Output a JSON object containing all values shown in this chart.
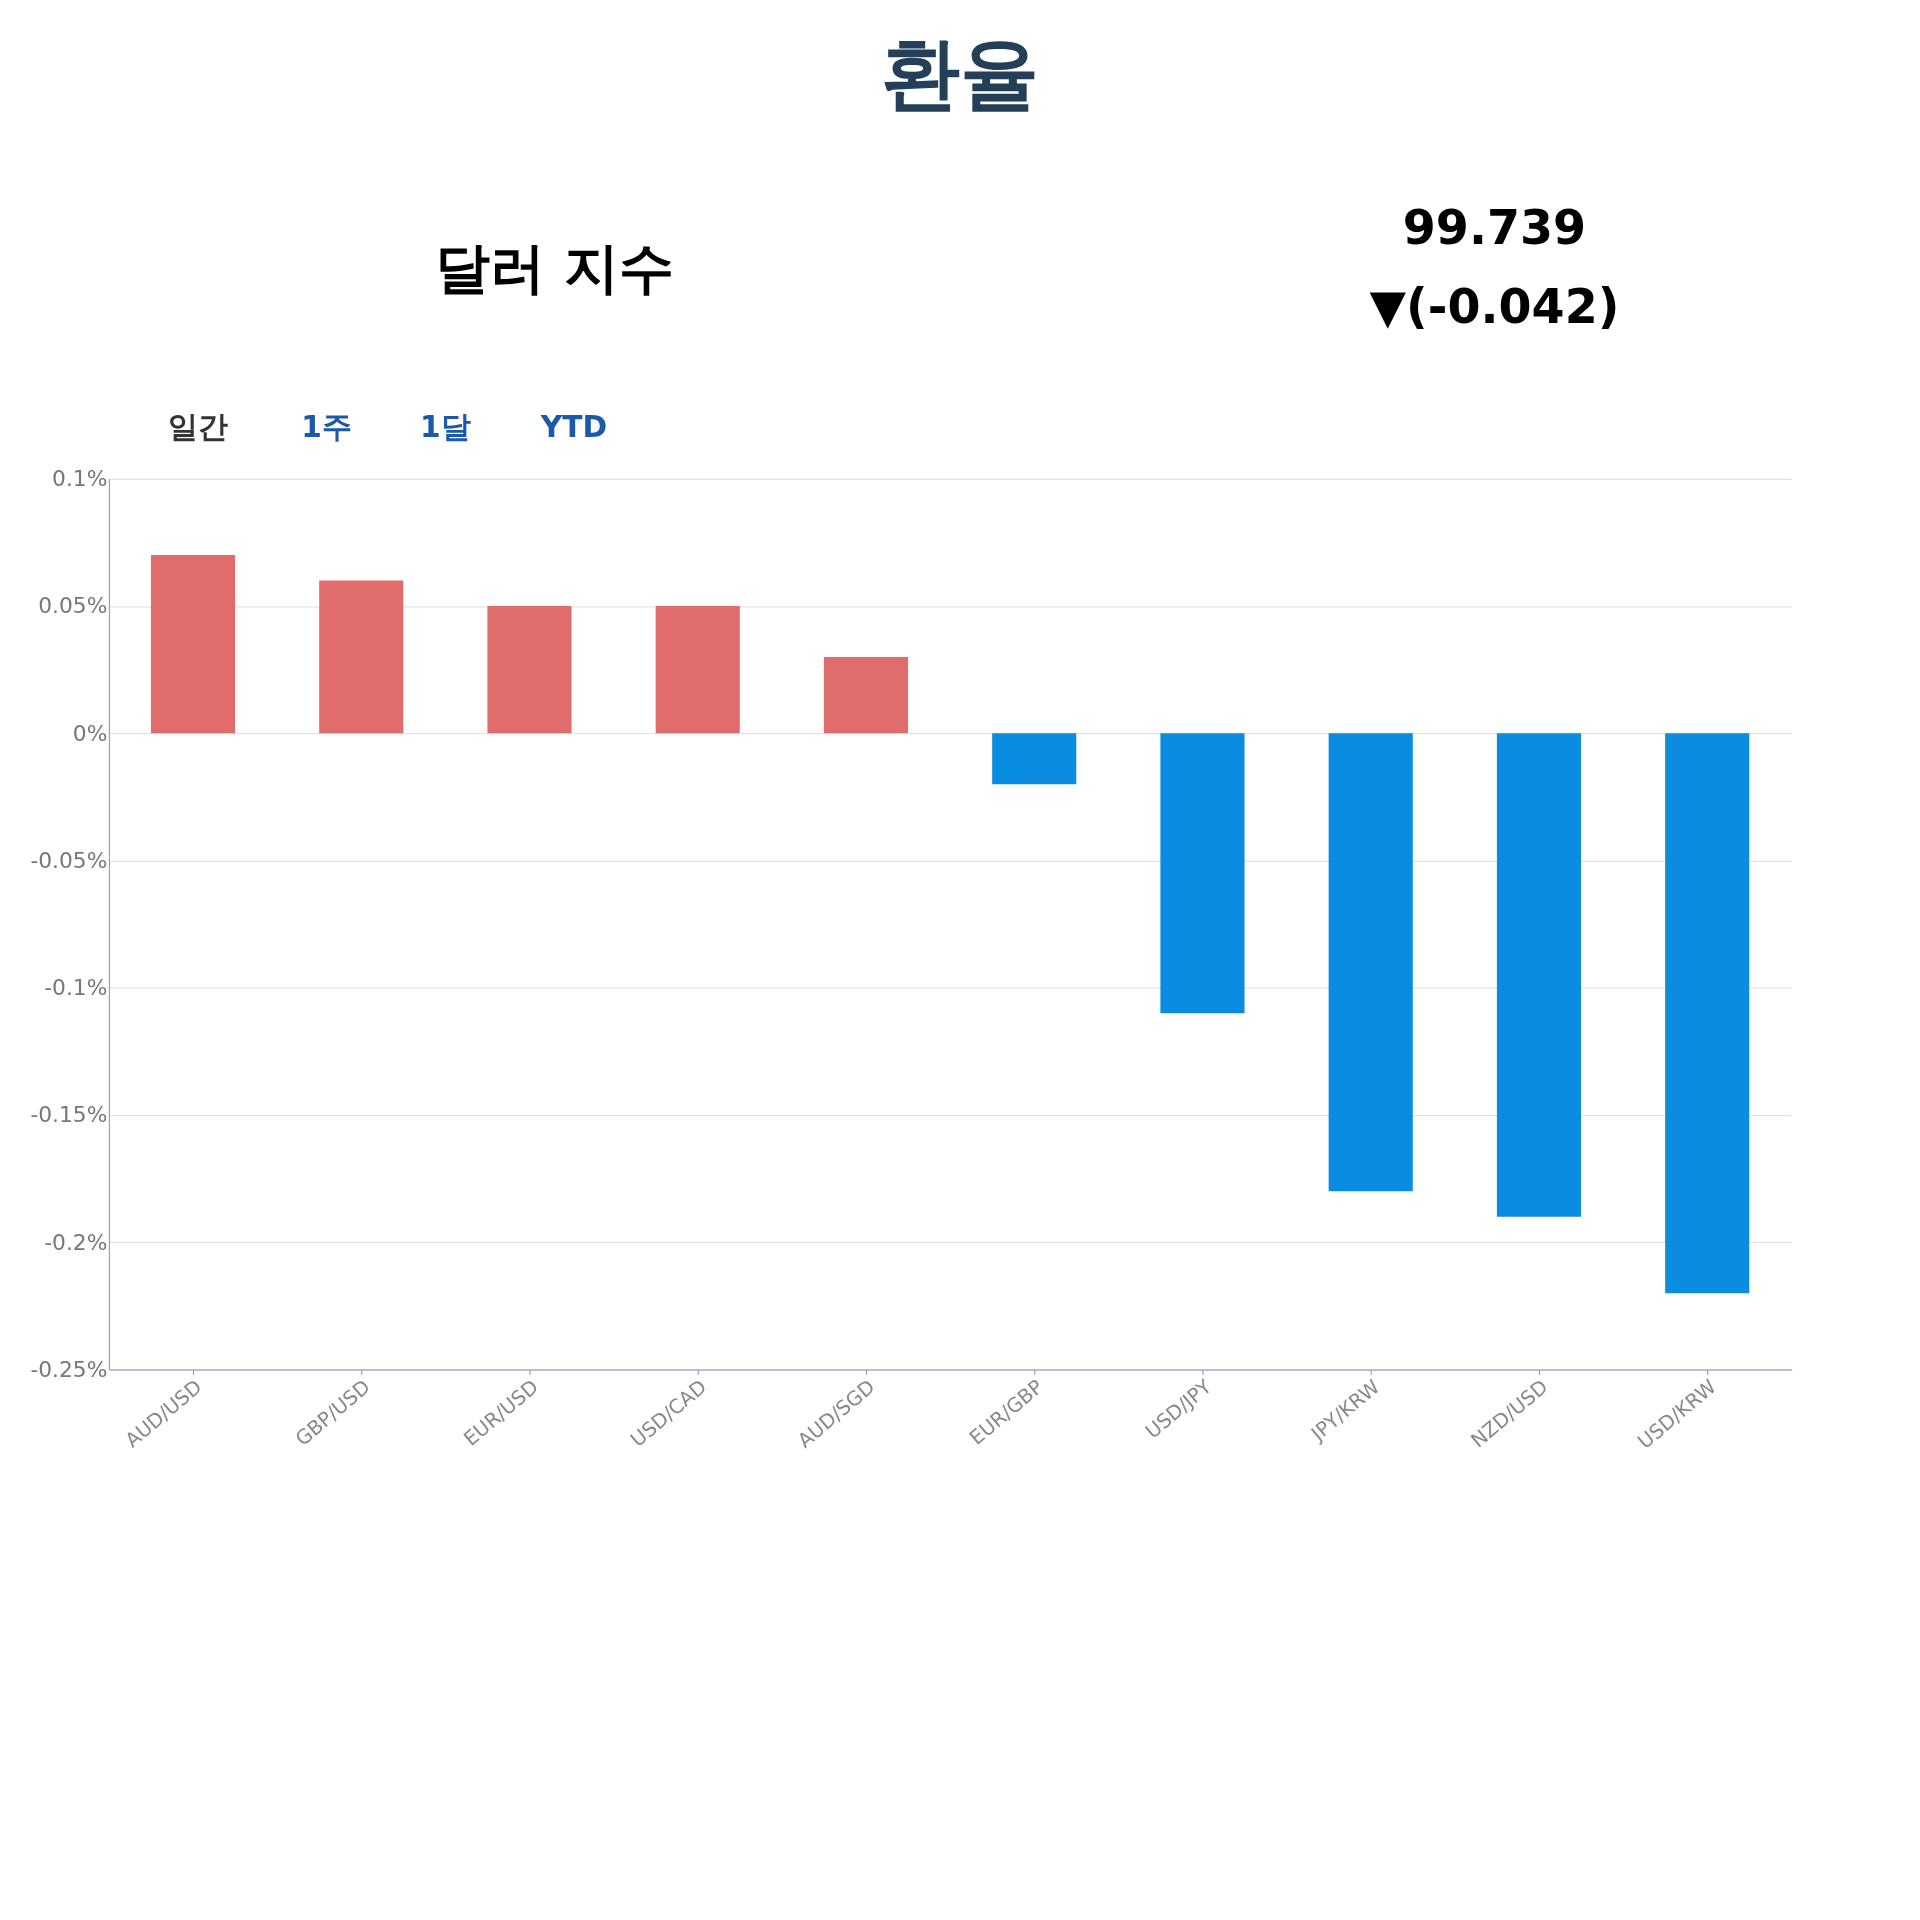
{
  "chart_data": {
    "type": "bar",
    "title": "환율",
    "annotations": [
      "달러 지수",
      "99.739",
      "▼(-0.042)",
      "일간",
      "1주",
      "1달",
      "YTD"
    ],
    "categories": [
      "AUD/USD",
      "GBP/USD",
      "EUR/USD",
      "USD/CAD",
      "AUD/SGD",
      "EUR/GBP",
      "USD/JPY",
      "JPY/KRW",
      "NZD/USD",
      "USD/KRW"
    ],
    "values": [
      0.07,
      0.06,
      0.05,
      0.05,
      0.03,
      -0.02,
      -0.11,
      -0.18,
      -0.19,
      -0.22
    ],
    "colors": [
      "#e06c6c",
      "#e06c6c",
      "#e06c6c",
      "#e06c6c",
      "#e06c6c",
      "#0a8de0",
      "#0a8de0",
      "#0a8de0",
      "#0a8de0",
      "#0a8de0"
    ],
    "ylim": [
      -0.25,
      0.1
    ],
    "yticks": [
      {
        "value": 0.1,
        "label": "0.1%"
      },
      {
        "value": 0.05,
        "label": "0.05%"
      },
      {
        "value": 0,
        "label": "0%"
      },
      {
        "value": -0.05,
        "label": "-0.05%"
      },
      {
        "value": -0.1,
        "label": "-0.1%"
      },
      {
        "value": -0.15,
        "label": "-0.15%"
      },
      {
        "value": -0.2,
        "label": "-0.2%"
      },
      {
        "value": -0.25,
        "label": "-0.25%"
      }
    ],
    "grid": "y",
    "legend": false
  }
}
